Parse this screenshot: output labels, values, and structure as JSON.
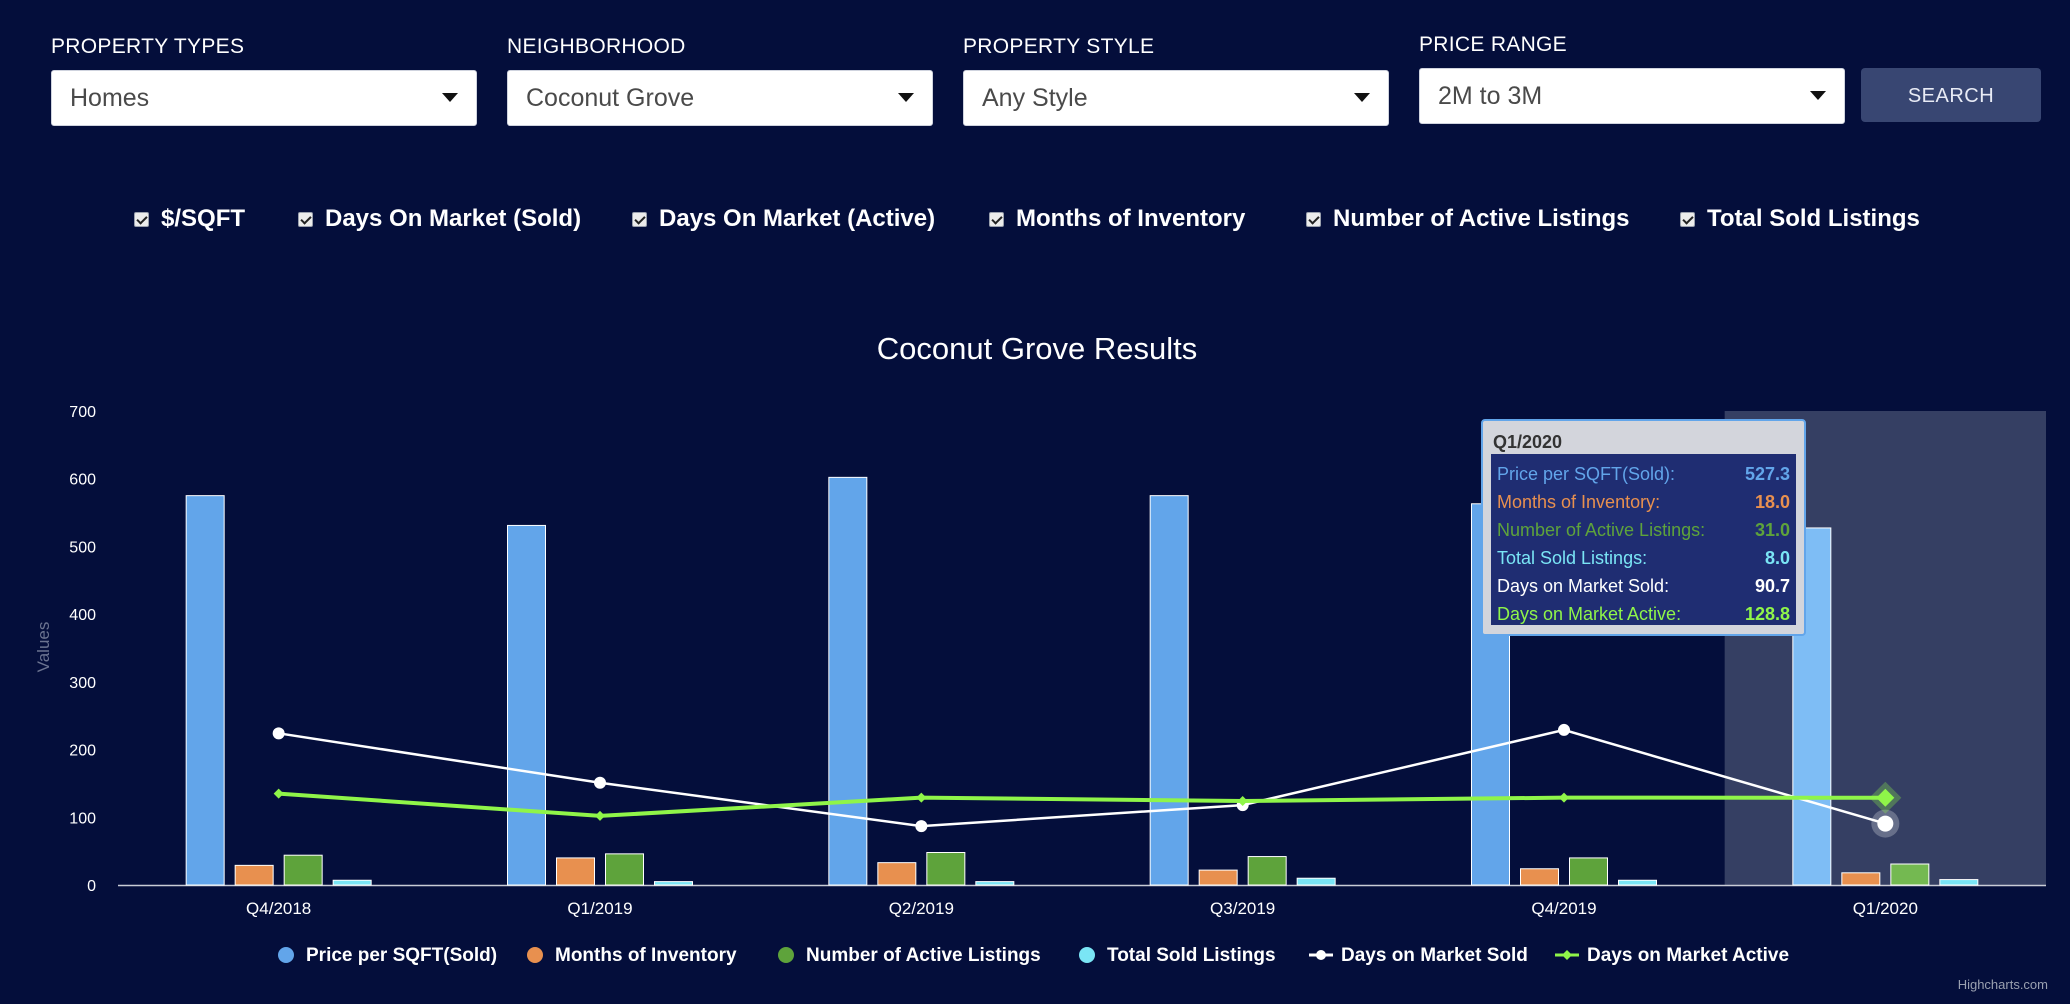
{
  "filters": [
    {
      "label": "PROPERTY TYPES",
      "value": "Homes"
    },
    {
      "label": "NEIGHBORHOOD",
      "value": "Coconut Grove"
    },
    {
      "label": "PROPERTY STYLE",
      "value": "Any Style"
    },
    {
      "label": "PRICE RANGE",
      "value": "2M to 3M"
    }
  ],
  "search_label": "SEARCH",
  "toggles": [
    {
      "label": "$/SQFT",
      "checked": true
    },
    {
      "label": "Days On Market (Sold)",
      "checked": true
    },
    {
      "label": "Days On Market (Active)",
      "checked": true
    },
    {
      "label": "Months of Inventory",
      "checked": true
    },
    {
      "label": "Number of Active Listings",
      "checked": true
    },
    {
      "label": "Total Sold Listings",
      "checked": true
    }
  ],
  "chart_data": {
    "type": "bar",
    "title": "Coconut Grove Results",
    "ylabel": "Values",
    "xlabel": "",
    "ylim": [
      0,
      700
    ],
    "yticks": [
      0,
      100,
      200,
      300,
      400,
      500,
      600,
      700
    ],
    "categories": [
      "Q4/2018",
      "Q1/2019",
      "Q2/2019",
      "Q3/2019",
      "Q4/2019",
      "Q1/2020"
    ],
    "series": [
      {
        "name": "Price per SQFT(Sold)",
        "type": "bar",
        "color": "#62a5ea",
        "values": [
          575,
          531,
          602,
          575,
          563,
          527.3
        ]
      },
      {
        "name": "Months of Inventory",
        "type": "bar",
        "color": "#e8904f",
        "values": [
          29,
          40,
          33,
          22,
          24,
          18.0
        ]
      },
      {
        "name": "Number of Active Listings",
        "type": "bar",
        "color": "#5ea33b",
        "values": [
          44,
          46,
          48,
          42,
          40,
          31.0
        ]
      },
      {
        "name": "Total Sold Listings",
        "type": "bar",
        "color": "#7ae5f5",
        "values": [
          7,
          5,
          5,
          10,
          7,
          8.0
        ]
      },
      {
        "name": "Days on Market Sold",
        "type": "line",
        "color": "#ffffff",
        "values": [
          224,
          151,
          87,
          118,
          229,
          90.7
        ]
      },
      {
        "name": "Days on Market Active",
        "type": "line",
        "color": "#8ff549",
        "values": [
          135,
          102,
          129,
          124,
          129,
          128.8
        ]
      }
    ],
    "highlighted_category": "Q1/2020",
    "legend_position": "bottom-center",
    "tooltip": {
      "title": "Q1/2020",
      "rows": [
        {
          "label": "Price per SQFT(Sold):",
          "value": "527.3",
          "color": "#62a5ea"
        },
        {
          "label": "Months of Inventory:",
          "value": "18.0",
          "color": "#e8904f"
        },
        {
          "label": "Number of Active Listings:",
          "value": "31.0",
          "color": "#5ea33b"
        },
        {
          "label": "Total Sold Listings:",
          "value": "8.0",
          "color": "#7ae5f5"
        },
        {
          "label": "Days on Market Sold:",
          "value": "90.7",
          "color": "#ffffff"
        },
        {
          "label": "Days on Market Active:",
          "value": "128.8",
          "color": "#8ff549"
        }
      ]
    },
    "credit": "Highcharts.com"
  }
}
